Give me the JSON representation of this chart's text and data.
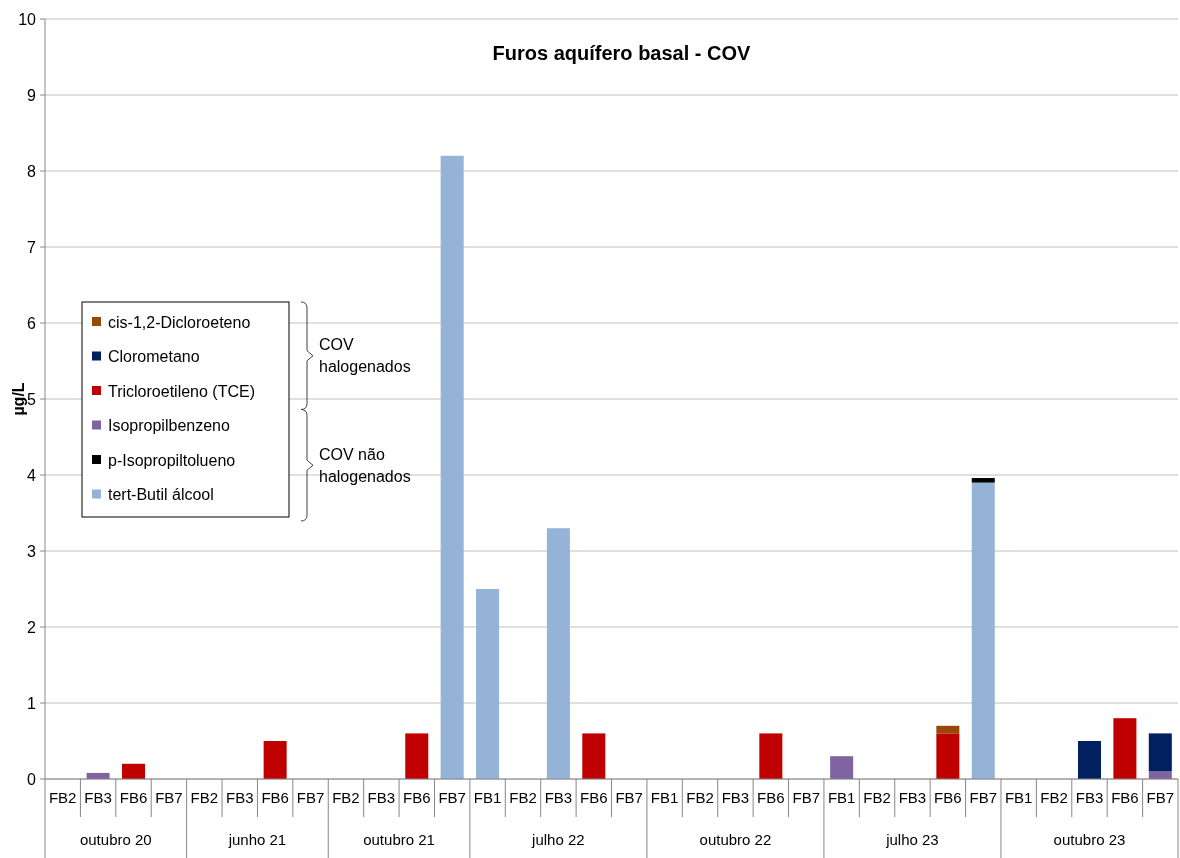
{
  "chart_data": {
    "type": "bar",
    "title": "Furos aquífero basal - COV",
    "ylabel": "µg/L",
    "categories": [
      "FB2",
      "FB3",
      "FB6",
      "FB7",
      "FB2",
      "FB3",
      "FB6",
      "FB7",
      "FB2",
      "FB3",
      "FB6",
      "FB7",
      "FB1",
      "FB2",
      "FB3",
      "FB6",
      "FB7",
      "FB1",
      "FB2",
      "FB3",
      "FB6",
      "FB7",
      "FB1",
      "FB2",
      "FB3",
      "FB6",
      "FB7",
      "FB1",
      "FB2",
      "FB3",
      "FB6",
      "FB7"
    ],
    "stacked": true,
    "ylim": [
      0,
      10
    ],
    "yticks": [
      0,
      1,
      2,
      3,
      4,
      5,
      6,
      7,
      8,
      9,
      10
    ],
    "grid": "y",
    "legend": "left",
    "series": [
      {
        "name": "tert-Butil álcool",
        "color": "#95b3d7",
        "values": [
          null,
          null,
          null,
          null,
          null,
          null,
          null,
          null,
          null,
          null,
          null,
          8.2,
          2.5,
          null,
          3.3,
          null,
          null,
          null,
          null,
          null,
          null,
          null,
          null,
          null,
          null,
          null,
          3.9,
          null,
          null,
          null,
          null,
          null
        ]
      },
      {
        "name": "p-Isopropiltolueno",
        "color": "#000000",
        "values": [
          null,
          null,
          null,
          null,
          null,
          null,
          null,
          null,
          null,
          null,
          null,
          null,
          null,
          null,
          null,
          null,
          null,
          null,
          null,
          null,
          null,
          null,
          null,
          null,
          null,
          null,
          0.06,
          null,
          null,
          null,
          null,
          null
        ]
      },
      {
        "name": "Isopropilbenzeno",
        "color": "#8064a2",
        "values": [
          null,
          0.08,
          null,
          null,
          null,
          null,
          null,
          null,
          null,
          null,
          null,
          null,
          null,
          null,
          null,
          null,
          null,
          null,
          null,
          null,
          null,
          null,
          0.3,
          null,
          null,
          null,
          null,
          null,
          null,
          null,
          null,
          0.1
        ]
      },
      {
        "name": "Tricloroetileno (TCE)",
        "color": "#c00000",
        "values": [
          null,
          null,
          0.2,
          null,
          null,
          null,
          0.5,
          null,
          null,
          null,
          0.6,
          null,
          null,
          null,
          null,
          0.6,
          null,
          null,
          null,
          null,
          0.6,
          null,
          null,
          null,
          null,
          0.6,
          null,
          null,
          null,
          null,
          0.8,
          null
        ]
      },
      {
        "name": "Clorometano",
        "color": "#002060",
        "values": [
          null,
          null,
          null,
          null,
          null,
          null,
          null,
          null,
          null,
          null,
          null,
          null,
          null,
          null,
          null,
          null,
          null,
          null,
          null,
          null,
          null,
          null,
          null,
          null,
          null,
          null,
          null,
          null,
          null,
          0.5,
          null,
          0.5
        ]
      },
      {
        "name": "cis-1,2-Dicloroeteno",
        "color": "#984807",
        "values": [
          null,
          null,
          null,
          null,
          null,
          null,
          null,
          null,
          null,
          null,
          null,
          null,
          null,
          null,
          null,
          null,
          null,
          null,
          null,
          null,
          null,
          null,
          null,
          null,
          null,
          0.1,
          null,
          null,
          null,
          null,
          null,
          null
        ]
      }
    ],
    "annotations": [
      "outubro 20",
      "junho 21",
      "outubro 21",
      "julho 22",
      "outubro 22",
      "julho 23",
      "outubro 23",
      "COV halogenados",
      "COV não halogenados"
    ]
  }
}
